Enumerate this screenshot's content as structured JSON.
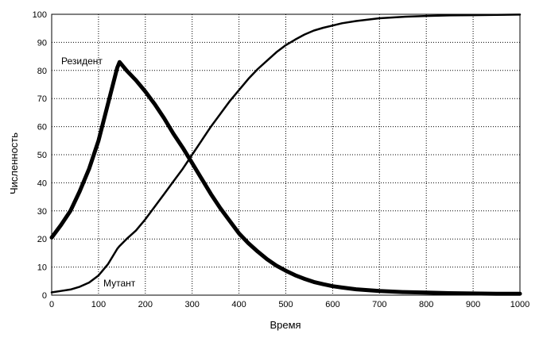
{
  "chart_data": {
    "type": "line",
    "xlabel": "Время",
    "ylabel": "Численность",
    "xlim": [
      0,
      1000
    ],
    "ylim": [
      0,
      100
    ],
    "x_ticks": [
      "0",
      "100",
      "200",
      "300",
      "400",
      "500",
      "600",
      "700",
      "800",
      "900",
      "1000"
    ],
    "y_ticks": [
      "0",
      "10",
      "20",
      "30",
      "40",
      "50",
      "60",
      "70",
      "80",
      "90",
      "100"
    ],
    "grid": "dotted",
    "line_color": "#000000",
    "series": [
      {
        "name": "Резидент",
        "line_style": "thick",
        "x": [
          0,
          20,
          40,
          60,
          80,
          100,
          120,
          140,
          145,
          160,
          180,
          200,
          220,
          240,
          260,
          280,
          300,
          320,
          340,
          360,
          380,
          400,
          420,
          440,
          460,
          480,
          500,
          520,
          540,
          560,
          580,
          600,
          620,
          650,
          700,
          750,
          800,
          850,
          900,
          950,
          1000
        ],
        "y": [
          20.5,
          25,
          30,
          37,
          45,
          55,
          68,
          81,
          83,
          80,
          76.5,
          72.5,
          68,
          63,
          57.5,
          52.5,
          47,
          41.5,
          36,
          31,
          26.5,
          22,
          18.5,
          15.5,
          12.8,
          10.5,
          8.7,
          7.1,
          5.8,
          4.7,
          3.9,
          3.2,
          2.7,
          2.1,
          1.5,
          1.1,
          0.9,
          0.7,
          0.6,
          0.5,
          0.5
        ]
      },
      {
        "name": "Мутант",
        "line_style": "thin",
        "x": [
          0,
          20,
          40,
          60,
          80,
          100,
          120,
          140,
          145,
          160,
          180,
          200,
          220,
          240,
          260,
          280,
          300,
          320,
          340,
          360,
          380,
          400,
          420,
          440,
          460,
          480,
          500,
          520,
          540,
          560,
          580,
          600,
          620,
          650,
          700,
          750,
          800,
          850,
          900,
          950,
          1000
        ],
        "y": [
          1,
          1.5,
          2,
          3,
          4.5,
          7,
          11,
          16.5,
          17.5,
          20,
          23,
          27,
          31.5,
          36,
          40.5,
          45,
          50,
          55,
          60,
          64.5,
          69,
          73,
          77,
          80.5,
          83.5,
          86.5,
          89,
          91,
          92.8,
          94.2,
          95.2,
          96,
          96.8,
          97.6,
          98.6,
          99.1,
          99.4,
          99.6,
          99.7,
          99.8,
          99.9
        ]
      }
    ]
  }
}
